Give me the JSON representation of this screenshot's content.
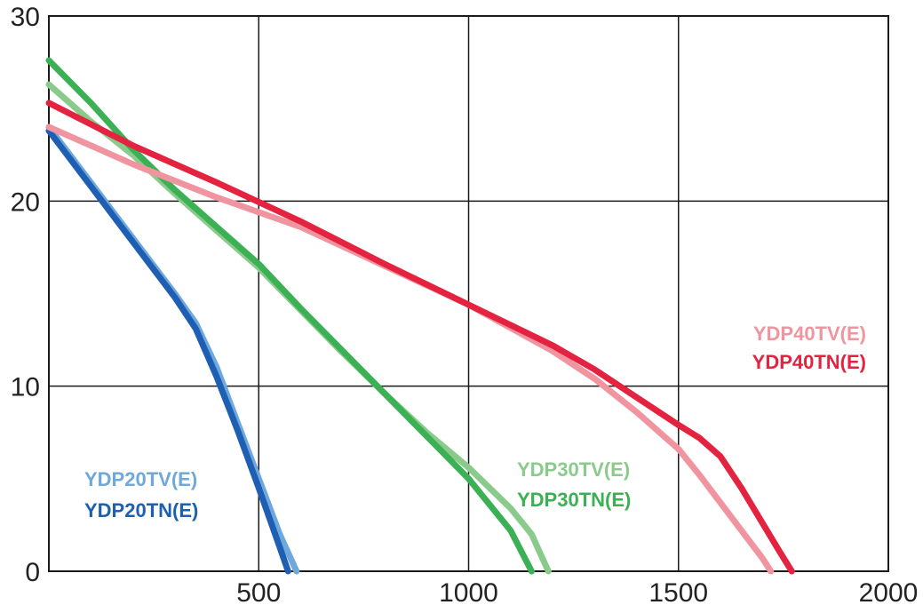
{
  "chart_data": {
    "type": "line",
    "title": "",
    "xlabel": "",
    "ylabel": "",
    "xlim": [
      0,
      2000
    ],
    "ylim": [
      0,
      30
    ],
    "x_ticks": [
      "500",
      "1000",
      "1500",
      "2000"
    ],
    "y_ticks": [
      "0",
      "10",
      "20",
      "30"
    ],
    "grid": true,
    "series": [
      {
        "name": "YDP20TV(E)",
        "color": "#6fa8dc",
        "x": [
          0,
          100,
          200,
          300,
          350,
          400,
          450,
          500,
          550,
          590
        ],
        "y": [
          24,
          21,
          18,
          15,
          13.4,
          11,
          8,
          5,
          2,
          0
        ]
      },
      {
        "name": "YDP20TN(E)",
        "color": "#1f5fb3",
        "x": [
          0,
          100,
          200,
          300,
          350,
          400,
          450,
          500,
          550,
          570
        ],
        "y": [
          23.8,
          20.8,
          17.8,
          14.8,
          13.1,
          10.5,
          7.6,
          4.5,
          1.3,
          0
        ]
      },
      {
        "name": "YDP30TV(E)",
        "color": "#8acb8c",
        "x": [
          0,
          100,
          200,
          300,
          400,
          500,
          600,
          700,
          800,
          900,
          1000,
          1100,
          1150,
          1180,
          1190
        ],
        "y": [
          26.3,
          24.3,
          22.5,
          20.4,
          18.4,
          16.4,
          14.1,
          11.8,
          9.6,
          7.5,
          5.6,
          3.4,
          2,
          0.5,
          0
        ]
      },
      {
        "name": "YDP30TN(E)",
        "color": "#3cb054",
        "x": [
          0,
          100,
          200,
          300,
          400,
          500,
          600,
          700,
          800,
          900,
          1000,
          1100,
          1150
        ],
        "y": [
          27.6,
          25.3,
          22.8,
          20.6,
          18.6,
          16.6,
          14.2,
          11.9,
          9.6,
          7.3,
          5,
          2.2,
          0
        ]
      },
      {
        "name": "YDP40TV(E)",
        "color": "#f095a0",
        "x": [
          0,
          200,
          400,
          600,
          800,
          1000,
          1200,
          1300,
          1400,
          1500,
          1550,
          1600,
          1700,
          1720
        ],
        "y": [
          24,
          22,
          20.2,
          18.6,
          16.5,
          14.4,
          11.9,
          10.4,
          8.6,
          6.6,
          5.2,
          3.7,
          0.7,
          0
        ]
      },
      {
        "name": "YDP40TN(E)",
        "color": "#e3233f",
        "x": [
          0,
          200,
          400,
          600,
          800,
          1000,
          1200,
          1300,
          1400,
          1500,
          1550,
          1600,
          1650,
          1700,
          1740,
          1770
        ],
        "y": [
          25.3,
          23,
          21,
          18.9,
          16.6,
          14.4,
          12.2,
          10.9,
          9.4,
          7.9,
          7.2,
          6.2,
          4.5,
          2.6,
          1.1,
          0
        ]
      }
    ]
  }
}
